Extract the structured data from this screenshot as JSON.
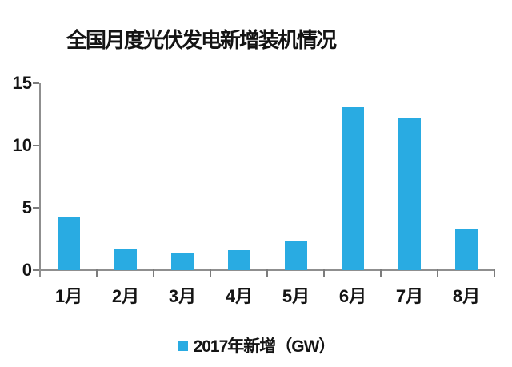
{
  "title": "全国月度光伏发电新增装机情况",
  "legend": {
    "label": "2017年新增（GW）"
  },
  "chart_data": {
    "type": "bar",
    "title": "全国月度光伏发电新增装机情况",
    "categories": [
      "1月",
      "2月",
      "3月",
      "4月",
      "5月",
      "6月",
      "7月",
      "8月"
    ],
    "series": [
      {
        "name": "2017年新增（GW）",
        "values": [
          4.2,
          1.7,
          1.4,
          1.6,
          2.3,
          13.1,
          12.2,
          3.3
        ]
      }
    ],
    "xlabel": "",
    "ylabel": "",
    "ylim": [
      0,
      15
    ],
    "yticks": [
      0,
      5,
      10,
      15
    ],
    "bar_color": "#29ABE2",
    "axis_color": "#8f8f8f",
    "text_color": "#141414",
    "grid": false,
    "legend_position": "bottom"
  }
}
